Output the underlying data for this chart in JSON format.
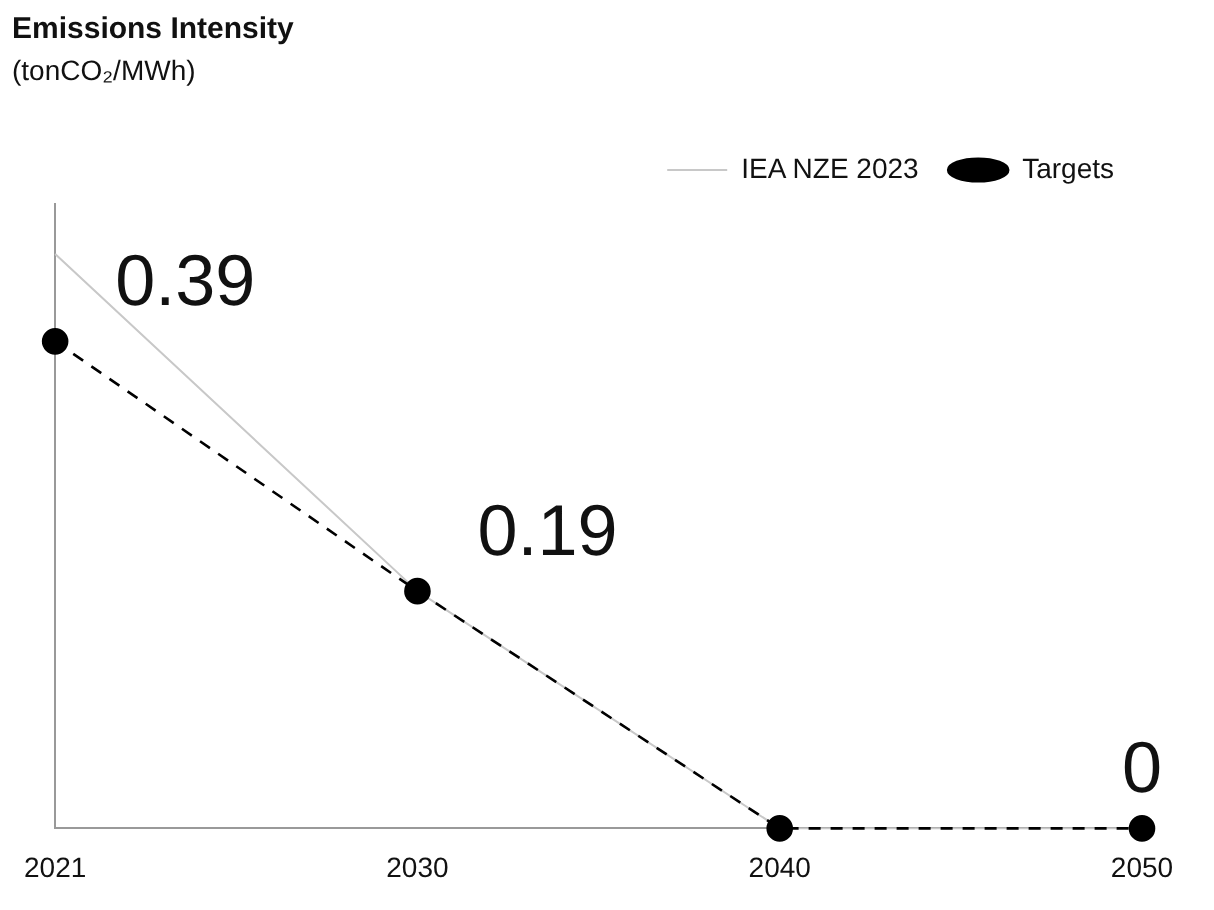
{
  "chart_data": {
    "type": "line",
    "title": "Emissions Intensity",
    "subtitle": "(tonCO₂/MWh)",
    "categories": [
      "2021",
      "2030",
      "2040",
      "2050"
    ],
    "series": [
      {
        "name": "IEA NZE 2023",
        "color": "#c8c8c8",
        "values": [
          0.46,
          0.19,
          0,
          0
        ],
        "line_style": "solid",
        "marker": "none"
      },
      {
        "name": "Targets",
        "color": "#000000",
        "values": [
          0.39,
          0.19,
          0,
          0
        ],
        "line_style": "dashed",
        "marker": "circle",
        "value_labels": [
          "0.39",
          "0.19",
          null,
          "0"
        ]
      }
    ],
    "legend": "top right",
    "grid": false
  }
}
